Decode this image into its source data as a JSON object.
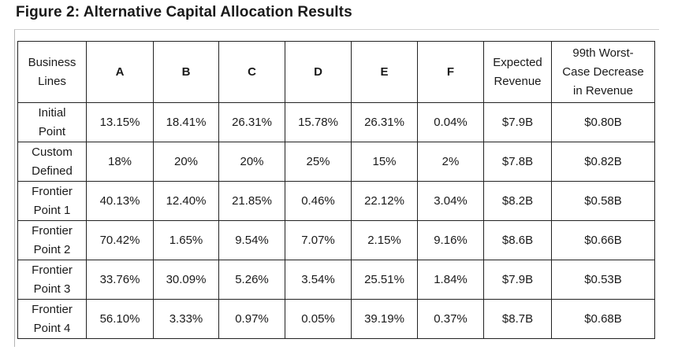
{
  "figure_title": "Figure 2: Alternative Capital Allocation Results",
  "table": {
    "headers": {
      "business_lines": "Business\nLines",
      "A": "A",
      "B": "B",
      "C": "C",
      "D": "D",
      "E": "E",
      "F": "F",
      "expected_revenue": "Expected\nRevenue",
      "worst_case": "99th Worst-\nCase Decrease\nin Revenue"
    },
    "rows": [
      {
        "label": "Initial\nPoint",
        "cells": [
          "13.15%",
          "18.41%",
          "26.31%",
          "15.78%",
          "26.31%",
          "0.04%",
          "$7.9B",
          "$0.80B"
        ]
      },
      {
        "label": "Custom\nDefined",
        "cells": [
          "18%",
          "20%",
          "20%",
          "25%",
          "15%",
          "2%",
          "$7.8B",
          "$0.82B"
        ]
      },
      {
        "label": "Frontier\nPoint 1",
        "cells": [
          "40.13%",
          "12.40%",
          "21.85%",
          "0.46%",
          "22.12%",
          "3.04%",
          "$8.2B",
          "$0.58B"
        ]
      },
      {
        "label": "Frontier\nPoint 2",
        "cells": [
          "70.42%",
          "1.65%",
          "9.54%",
          "7.07%",
          "2.15%",
          "9.16%",
          "$8.6B",
          "$0.66B"
        ]
      },
      {
        "label": "Frontier\nPoint 3",
        "cells": [
          "33.76%",
          "30.09%",
          "5.26%",
          "3.54%",
          "25.51%",
          "1.84%",
          "$7.9B",
          "$0.53B"
        ]
      },
      {
        "label": "Frontier\nPoint 4",
        "cells": [
          "56.10%",
          "3.33%",
          "0.97%",
          "0.05%",
          "39.19%",
          "0.37%",
          "$8.7B",
          "$0.68B"
        ]
      }
    ]
  }
}
